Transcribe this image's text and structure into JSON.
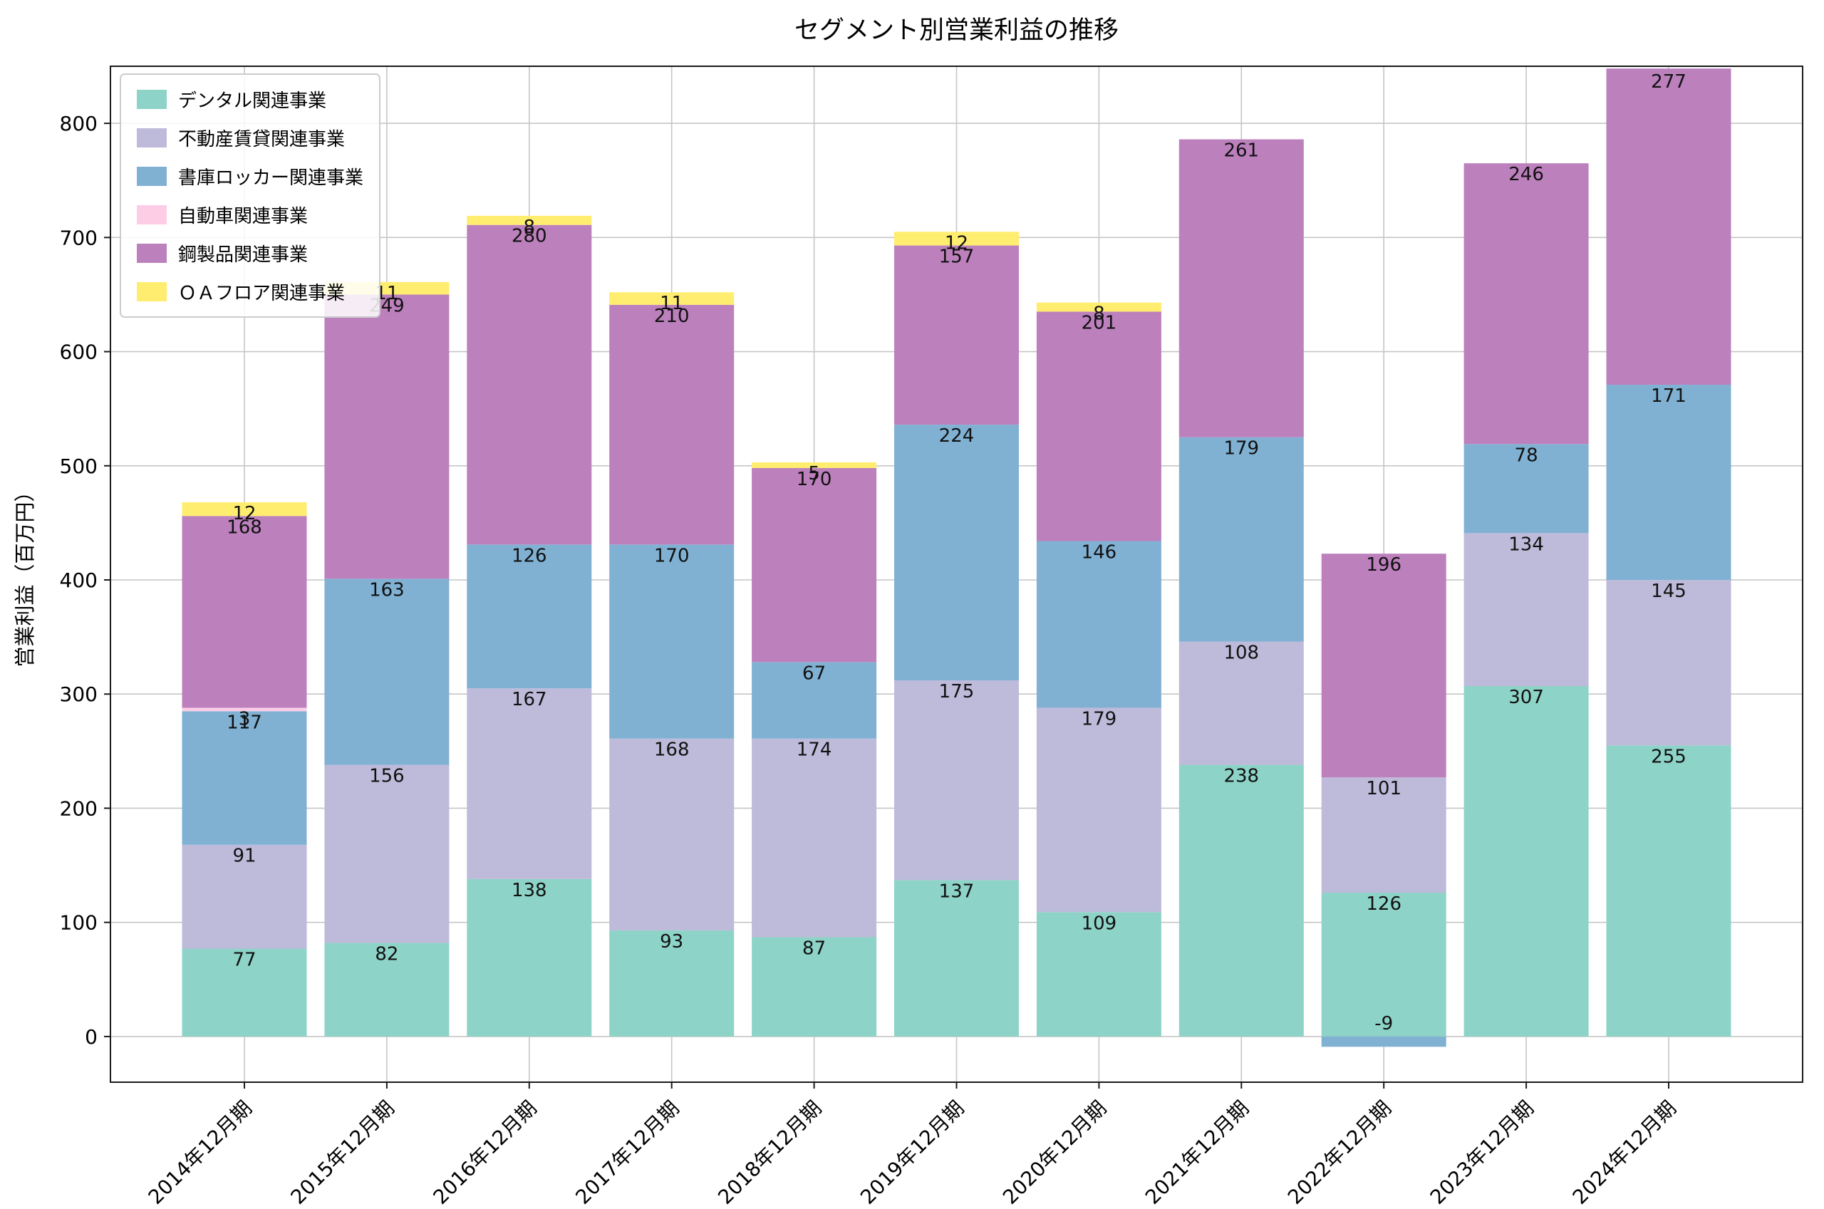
{
  "title": "セグメント別営業利益の推移",
  "ylabel": "営業利益（百万円）",
  "chart_data": {
    "type": "bar",
    "stacked": true,
    "grid": true,
    "legend_position": "upper-left",
    "categories": [
      "2014年12月期",
      "2015年12月期",
      "2016年12月期",
      "2017年12月期",
      "2018年12月期",
      "2019年12月期",
      "2020年12月期",
      "2021年12月期",
      "2022年12月期",
      "2023年12月期",
      "2024年12月期"
    ],
    "series": [
      {
        "name": "デンタル関連事業",
        "color": "#8dd3c7",
        "values": [
          77,
          82,
          138,
          93,
          87,
          137,
          109,
          238,
          126,
          307,
          255
        ]
      },
      {
        "name": "不動産賃貸関連事業",
        "color": "#bebada",
        "values": [
          91,
          156,
          167,
          168,
          174,
          175,
          179,
          108,
          101,
          134,
          145
        ]
      },
      {
        "name": "書庫ロッカー関連事業",
        "color": "#80b1d3",
        "values": [
          117,
          163,
          126,
          170,
          67,
          224,
          146,
          179,
          -9,
          78,
          171
        ]
      },
      {
        "name": "自動車関連事業",
        "color": "#fccde5",
        "values": [
          3,
          null,
          null,
          null,
          null,
          null,
          null,
          null,
          null,
          null,
          null
        ]
      },
      {
        "name": "鋼製品関連事業",
        "color": "#bc80bd",
        "values": [
          168,
          249,
          280,
          210,
          170,
          157,
          201,
          261,
          196,
          246,
          277
        ]
      },
      {
        "name": "ＯＡフロア関連事業",
        "color": "#ffed6f",
        "values": [
          12,
          11,
          8,
          11,
          5,
          12,
          8,
          null,
          null,
          null,
          null
        ]
      }
    ],
    "ylim": [
      -40,
      850
    ],
    "yticks": [
      0,
      100,
      200,
      300,
      400,
      500,
      600,
      700,
      800
    ]
  }
}
